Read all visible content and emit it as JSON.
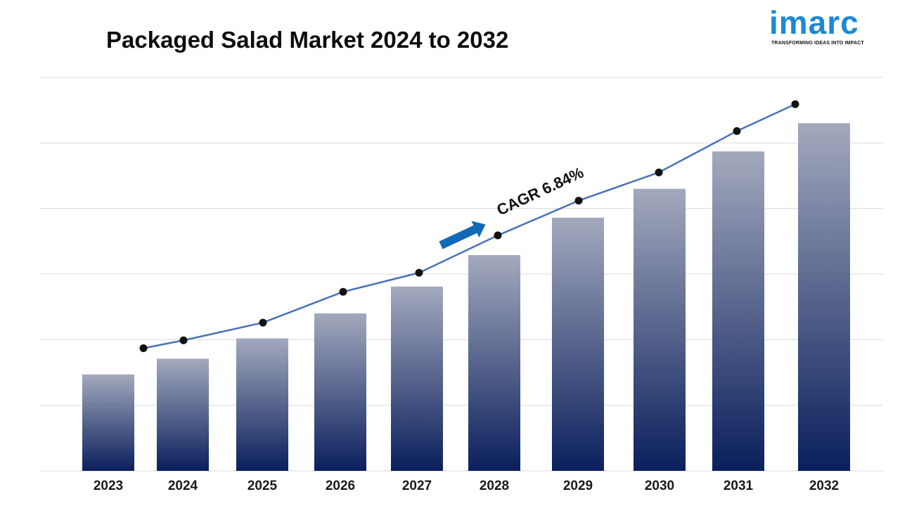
{
  "title": "Packaged Salad Market 2024 to 2032",
  "logo": {
    "wordmark": "imarc",
    "tagline": "TRANSFORMING IDEAS INTO IMPACT"
  },
  "colors": {
    "bar_top": "#a3a9bd",
    "bar_bottom": "#0a1f5c",
    "line": "#4a72b8",
    "marker": "#111111",
    "arrow": "#1269b5",
    "logo": "#1e88d4",
    "gridline": "#d9d9d9"
  },
  "chart_data": {
    "type": "bar",
    "title": "Packaged Salad Market 2024 to 2032",
    "categories": [
      "2023",
      "2024",
      "2025",
      "2026",
      "2027",
      "2028",
      "2029",
      "2030",
      "2031",
      "2032"
    ],
    "series": [
      {
        "type": "bar",
        "values": [
          14.7,
          17.1,
          20.2,
          24.0,
          28.1,
          32.9,
          38.6,
          43.0,
          48.7,
          53.0
        ]
      },
      {
        "type": "line",
        "values": [
          18.7,
          19.9,
          22.6,
          27.3,
          30.2,
          35.9,
          41.2,
          45.5,
          51.8,
          55.9
        ]
      }
    ],
    "ylim": [
      0,
      60
    ],
    "gridlines": true,
    "y_tick_labels_shown": false,
    "annotation": "CAGR 6.84%"
  }
}
